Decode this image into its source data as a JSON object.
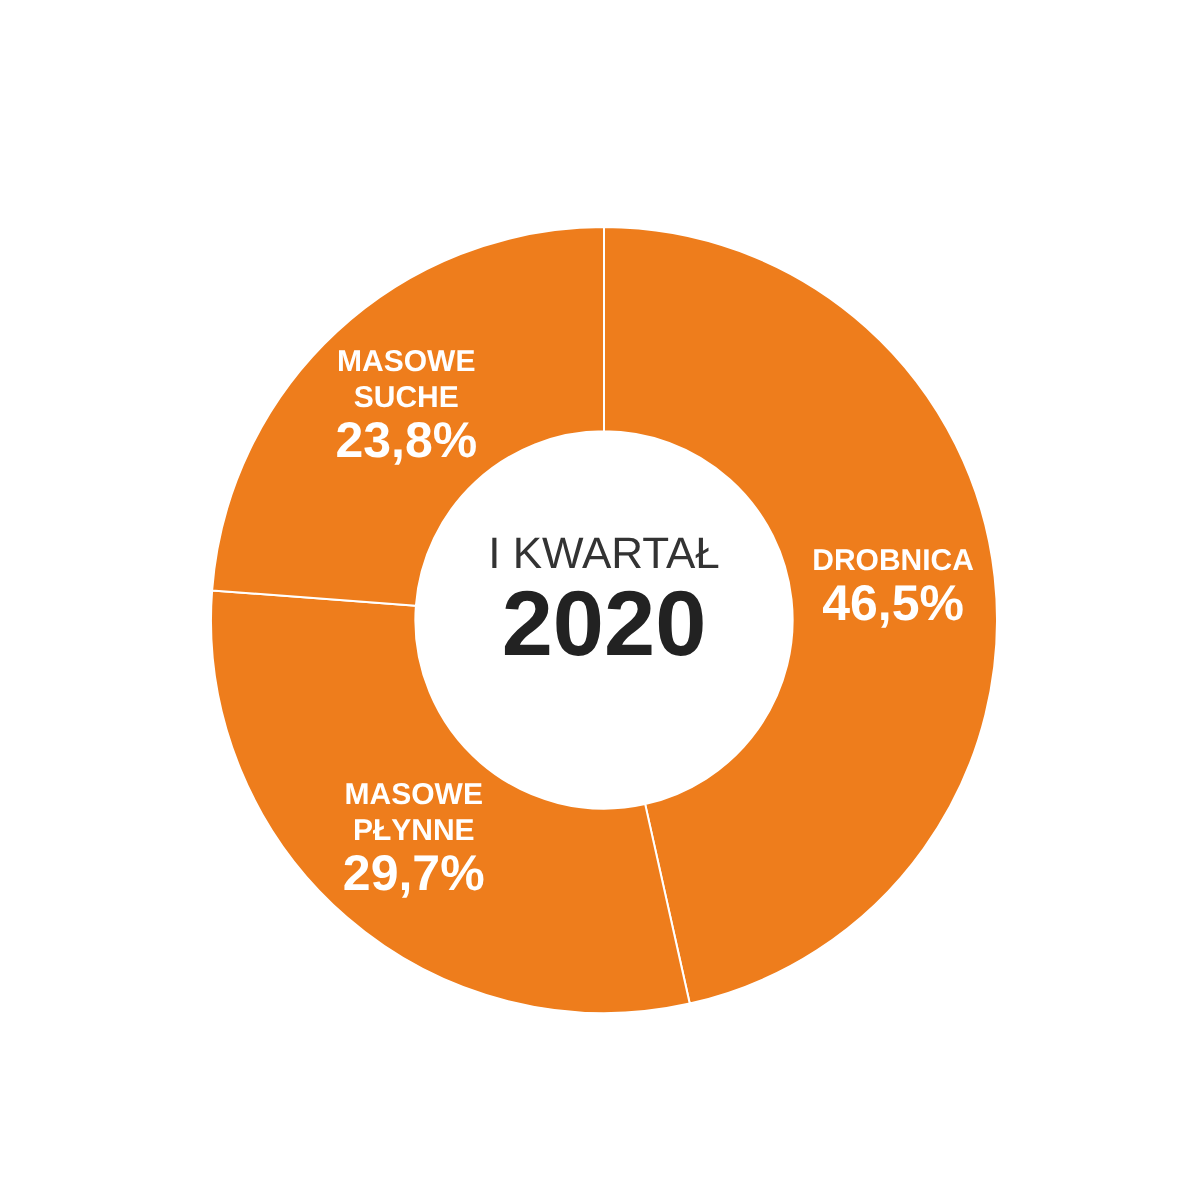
{
  "chart_data": {
    "type": "donut",
    "title": "I KWARTAŁ",
    "subtitle": "2020",
    "categories": [
      "DROBNICA",
      "MASOWE PŁYNNE",
      "MASOWE SUCHE"
    ],
    "values": [
      46.5,
      29.7,
      23.8
    ],
    "colors": [
      "#ee7d1c",
      "#ee7d1c",
      "#ee7d1c"
    ],
    "value_labels": [
      "46,5%",
      "29,7%",
      "23,8%"
    ]
  }
}
